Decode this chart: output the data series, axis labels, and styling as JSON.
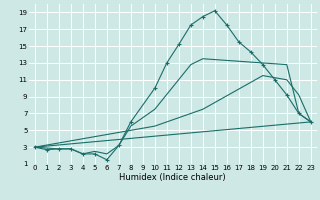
{
  "xlabel": "Humidex (Indice chaleur)",
  "bg_color": "#cde8e5",
  "grid_color": "#ffffff",
  "line_color": "#1a6e6a",
  "xlim": [
    -0.5,
    23.5
  ],
  "ylim": [
    1,
    20
  ],
  "xticks": [
    0,
    1,
    2,
    3,
    4,
    5,
    6,
    7,
    8,
    9,
    10,
    11,
    12,
    13,
    14,
    15,
    16,
    17,
    18,
    19,
    20,
    21,
    22,
    23
  ],
  "yticks": [
    1,
    3,
    5,
    7,
    9,
    11,
    13,
    15,
    17,
    19
  ],
  "series": [
    {
      "x": [
        0,
        1,
        2,
        3,
        4,
        5,
        6,
        7,
        8,
        10,
        11,
        12,
        13,
        14,
        15,
        16,
        17,
        18,
        19,
        20,
        21,
        22,
        23
      ],
      "y": [
        3,
        2.7,
        2.8,
        2.8,
        2.2,
        2.2,
        1.5,
        3.2,
        6.0,
        10.0,
        13.0,
        15.2,
        17.5,
        18.5,
        19.2,
        17.5,
        15.5,
        14.3,
        12.8,
        11.0,
        9.2,
        7.0,
        6.0
      ],
      "marker": "+"
    },
    {
      "x": [
        0,
        2,
        3,
        4,
        5,
        6,
        7,
        8,
        10,
        13,
        14,
        21,
        22,
        23
      ],
      "y": [
        3,
        2.8,
        2.8,
        2.2,
        2.5,
        2.2,
        3.2,
        5.5,
        7.5,
        12.8,
        13.5,
        12.8,
        7.0,
        6.0
      ],
      "marker": null
    },
    {
      "x": [
        0,
        10,
        14,
        19,
        21,
        22,
        23
      ],
      "y": [
        3,
        5.5,
        7.5,
        11.5,
        11.0,
        9.2,
        6.0
      ],
      "marker": null
    },
    {
      "x": [
        0,
        23
      ],
      "y": [
        3,
        6.0
      ],
      "marker": null
    }
  ]
}
